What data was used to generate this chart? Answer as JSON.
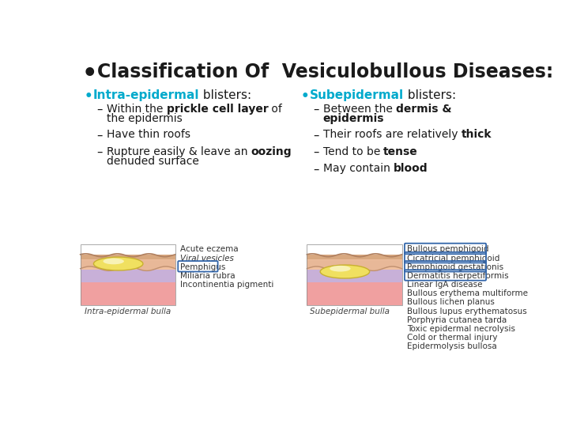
{
  "bg_color": "#ffffff",
  "title": "Classification Of  Vesiculobullous Diseases:",
  "accent_color": "#00AACC",
  "text_color": "#1a1a1a",
  "left_header_colored": "Intra-epidermal",
  "left_header_rest": " blisters:",
  "right_header_colored": "Subepidermal",
  "right_header_rest": " blisters:",
  "image_note_left": "Intra-epidermal bulla",
  "image_note_right": "Subepidermal bulla",
  "left_list_small": [
    "Acute eczema",
    "Viral vesicles",
    "Pemphigus",
    "Miliaria rubra",
    "Incontinentia pigmenti"
  ],
  "right_list_small_boxed": [
    "Bullous pemphigoid",
    "Cicatricial pemphigoid",
    "Pemphigoid gestationis",
    "Dermatitis herpetiformis"
  ],
  "right_list_small_plain": [
    "Linear IgA disease",
    "Bullous erythema multiforme",
    "Bullous lichen planus",
    "Bullous lupus erythematosus",
    "Porphyria cutanea tarda",
    "Toxic epidermal necrolysis",
    "Cold or thermal injury",
    "Epidermolysis bullosa"
  ]
}
